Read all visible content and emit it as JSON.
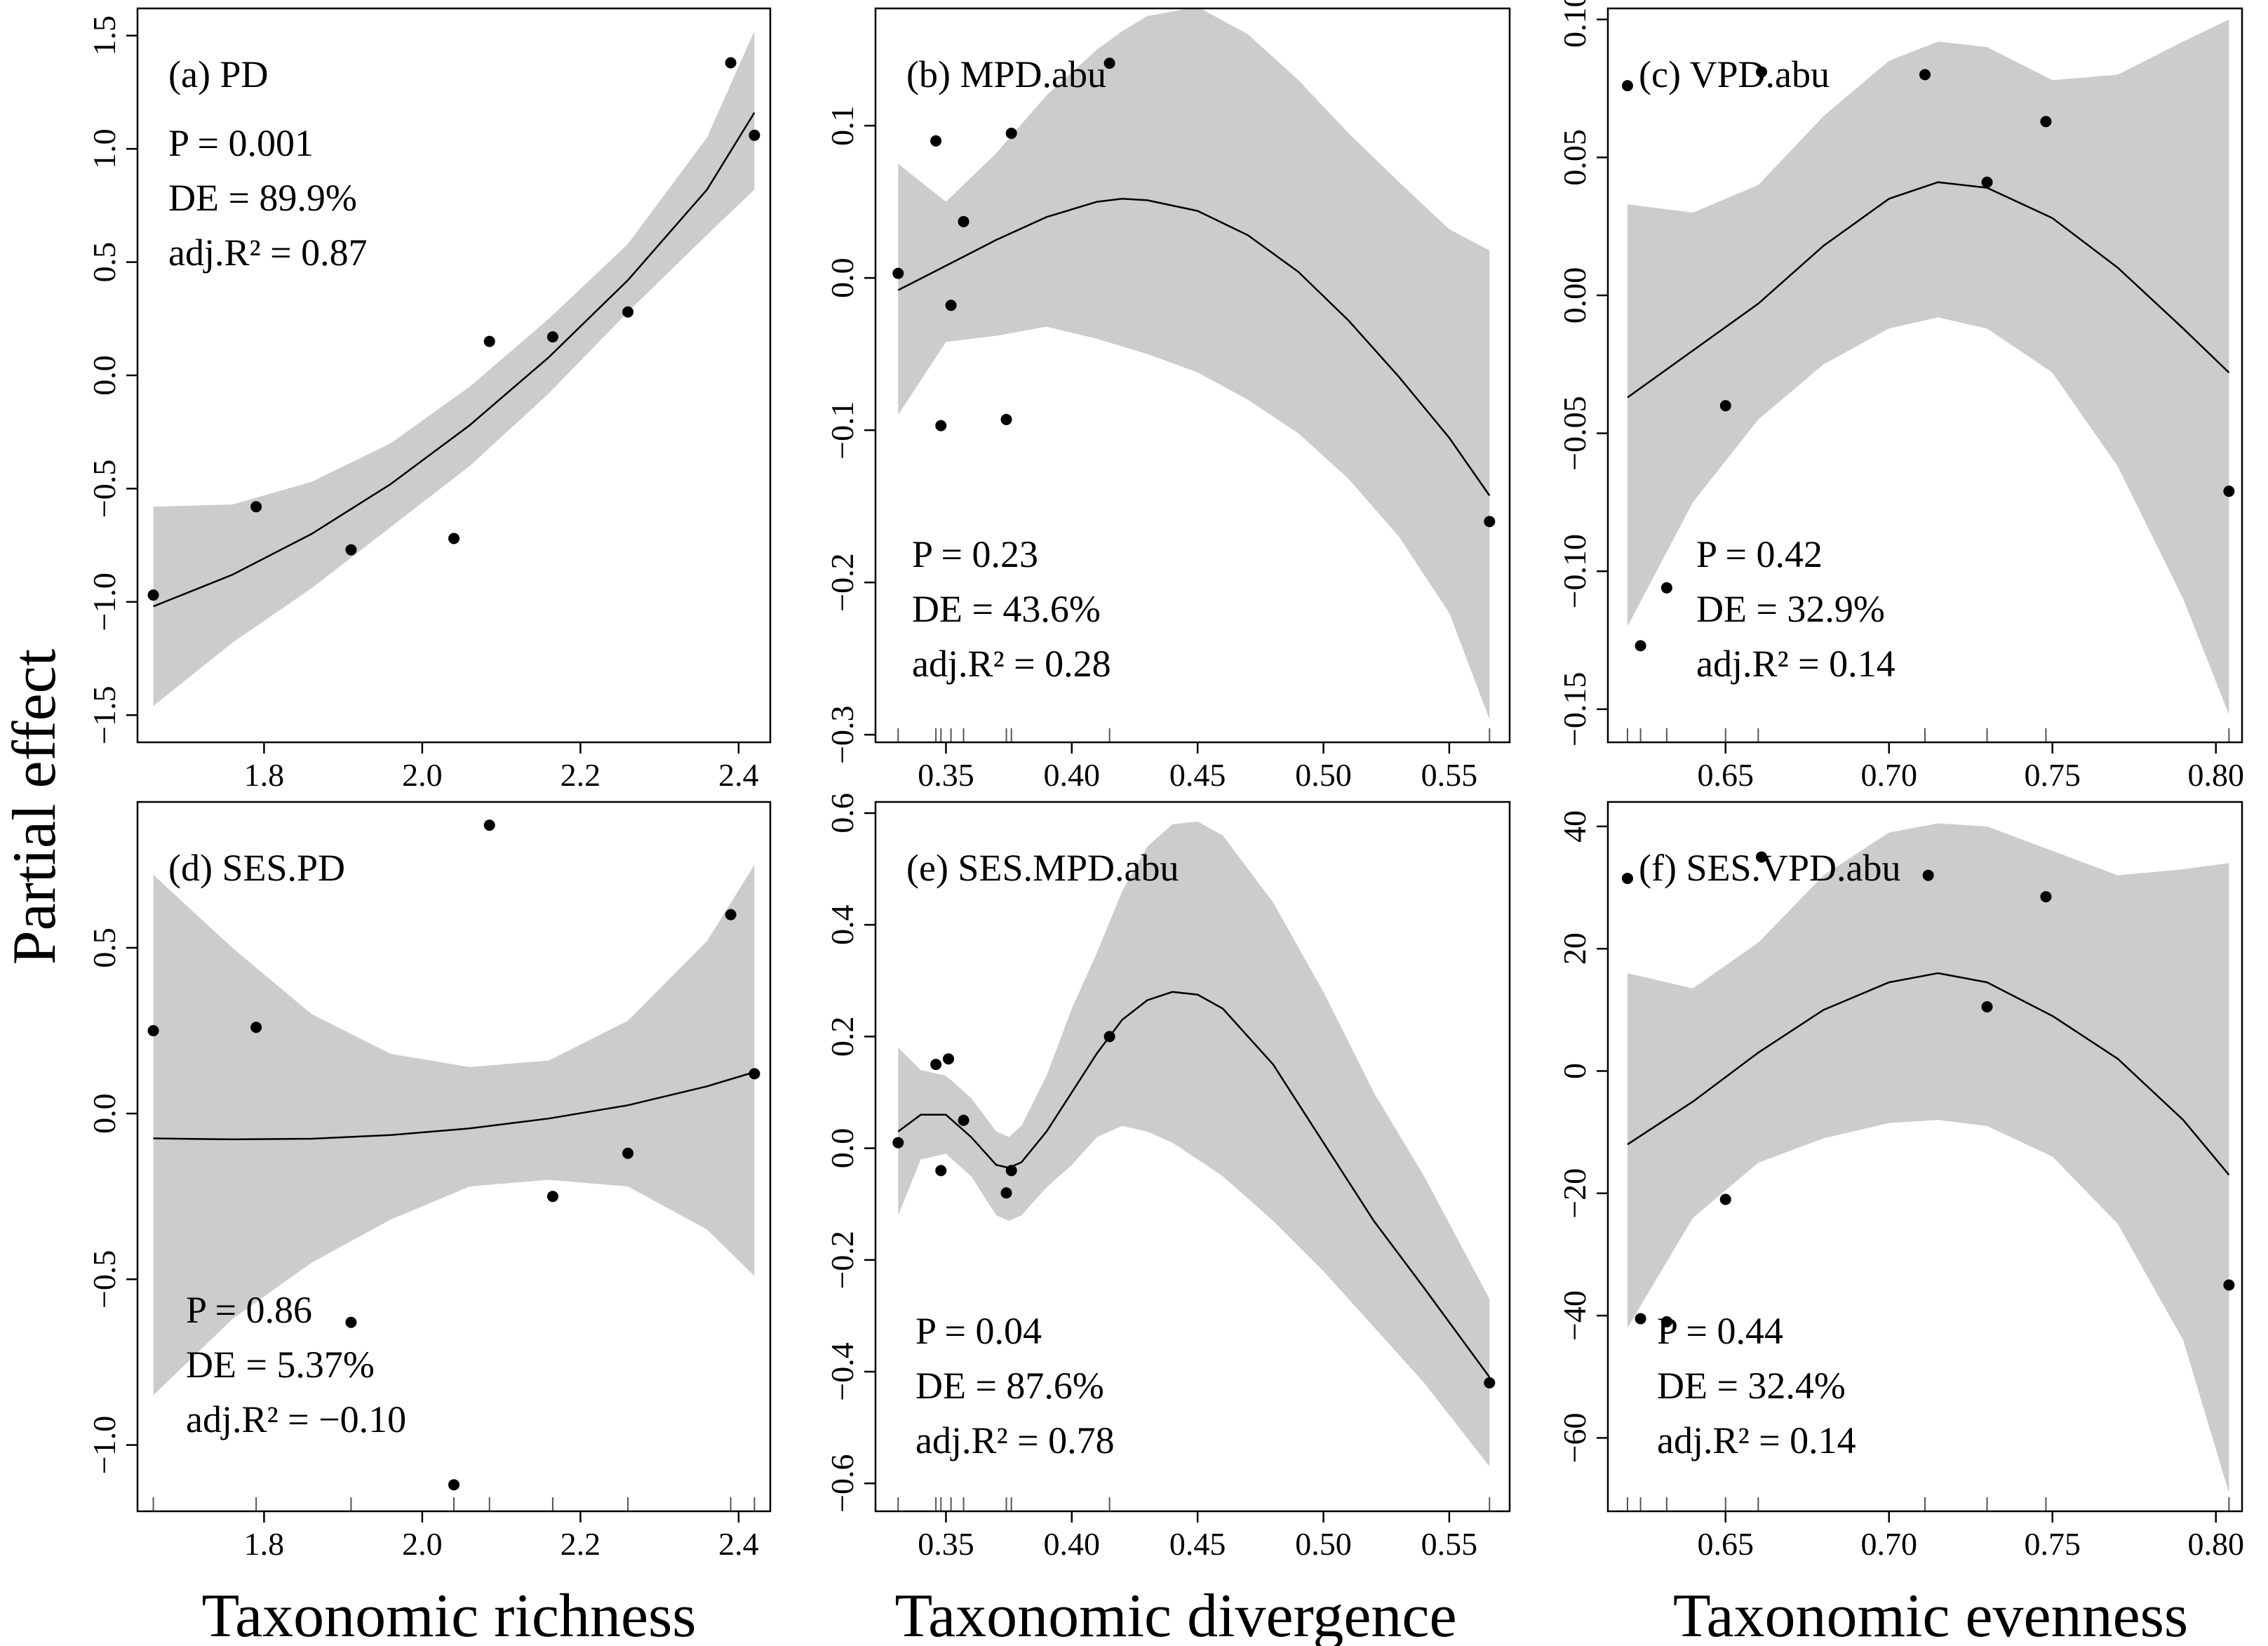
{
  "figure": {
    "ylabel": "Partial effect",
    "xlabels": [
      "Taxonomic richness",
      "Taxonomic divergence",
      "Taxonomic evenness"
    ]
  },
  "colors": {
    "band": "#cccccc",
    "line": "#000000",
    "point": "#000000",
    "frame": "#000000"
  },
  "chart_data": [
    {
      "type": "scatter",
      "panel": "(a) PD",
      "stats": {
        "p": "P = 0.001",
        "de": "DE = 89.9%",
        "r2": "adj.R² = 0.87"
      },
      "xlim": [
        1.64,
        2.44
      ],
      "ylim": [
        -1.62,
        1.62
      ],
      "xticks": [
        1.8,
        2.0,
        2.2,
        2.4
      ],
      "xtick_labels": [
        "1.8",
        "2.0",
        "2.2",
        "2.4"
      ],
      "yticks": [
        -1.5,
        -1.0,
        -0.5,
        0.0,
        0.5,
        1.0,
        1.5
      ],
      "ytick_labels": [
        "−1.5",
        "−1.0",
        "−0.5",
        "0.0",
        "0.5",
        "1.0",
        "1.5"
      ],
      "rug": [],
      "points": [
        [
          1.66,
          -0.97
        ],
        [
          1.79,
          -0.58
        ],
        [
          1.91,
          -0.77
        ],
        [
          2.04,
          -0.72
        ],
        [
          2.085,
          0.15
        ],
        [
          2.165,
          0.17
        ],
        [
          2.26,
          0.28
        ],
        [
          2.39,
          1.38
        ],
        [
          2.42,
          1.06
        ]
      ],
      "fit_x": [
        1.66,
        1.76,
        1.86,
        1.96,
        2.06,
        2.16,
        2.26,
        2.36,
        2.42
      ],
      "fit_y": [
        -1.02,
        -0.88,
        -0.7,
        -0.48,
        -0.22,
        0.08,
        0.42,
        0.82,
        1.16
      ],
      "lower": [
        -1.46,
        -1.18,
        -0.94,
        -0.67,
        -0.4,
        -0.08,
        0.28,
        0.62,
        0.82
      ],
      "upper": [
        -0.58,
        -0.57,
        -0.47,
        -0.3,
        -0.05,
        0.25,
        0.58,
        1.05,
        1.52
      ]
    },
    {
      "type": "scatter",
      "panel": "(b) MPD.abu",
      "stats": {
        "p": "P = 0.23",
        "de": "DE = 43.6%",
        "r2": "adj.R² = 0.28"
      },
      "xlim": [
        0.322,
        0.574
      ],
      "ylim": [
        -0.305,
        0.177
      ],
      "xticks": [
        0.35,
        0.4,
        0.45,
        0.5,
        0.55
      ],
      "xtick_labels": [
        "0.35",
        "0.40",
        "0.45",
        "0.50",
        "0.55"
      ],
      "yticks": [
        -0.3,
        -0.2,
        -0.1,
        0.0,
        0.1
      ],
      "ytick_labels": [
        "−0.3",
        "−0.2",
        "−0.1",
        "0.0",
        "0.1"
      ],
      "rug": [
        0.331,
        0.346,
        0.348,
        0.352,
        0.357,
        0.374,
        0.376,
        0.415,
        0.566
      ],
      "points": [
        [
          0.331,
          0.003
        ],
        [
          0.346,
          0.09
        ],
        [
          0.348,
          -0.097
        ],
        [
          0.352,
          -0.018
        ],
        [
          0.357,
          0.037
        ],
        [
          0.374,
          -0.093
        ],
        [
          0.376,
          0.095
        ],
        [
          0.415,
          0.141
        ],
        [
          0.566,
          -0.16
        ]
      ],
      "fit_x": [
        0.331,
        0.35,
        0.37,
        0.39,
        0.41,
        0.42,
        0.43,
        0.45,
        0.47,
        0.49,
        0.51,
        0.53,
        0.55,
        0.566
      ],
      "fit_y": [
        -0.008,
        0.008,
        0.025,
        0.04,
        0.05,
        0.052,
        0.051,
        0.044,
        0.028,
        0.004,
        -0.028,
        -0.065,
        -0.105,
        -0.143
      ],
      "lower": [
        -0.09,
        -0.042,
        -0.038,
        -0.032,
        -0.04,
        -0.045,
        -0.05,
        -0.062,
        -0.08,
        -0.102,
        -0.132,
        -0.17,
        -0.22,
        -0.29
      ],
      "upper": [
        0.075,
        0.05,
        0.082,
        0.12,
        0.15,
        0.162,
        0.172,
        0.178,
        0.16,
        0.13,
        0.095,
        0.063,
        0.032,
        0.018
      ]
    },
    {
      "type": "scatter",
      "panel": "(c) VPD.abu",
      "stats": {
        "p": "P = 0.42",
        "de": "DE = 32.9%",
        "r2": "adj.R² = 0.14"
      },
      "xlim": [
        0.614,
        0.808
      ],
      "ylim": [
        -0.162,
        0.104
      ],
      "xticks": [
        0.65,
        0.7,
        0.75,
        0.8
      ],
      "xtick_labels": [
        "0.65",
        "0.70",
        "0.75",
        "0.80"
      ],
      "yticks": [
        -0.15,
        -0.1,
        -0.05,
        0.0,
        0.05,
        0.1
      ],
      "ytick_labels": [
        "−0.15",
        "−0.10",
        "−0.05",
        "0.00",
        "0.05",
        "0.10"
      ],
      "rug": [
        0.62,
        0.624,
        0.632,
        0.65,
        0.66,
        0.711,
        0.73,
        0.748,
        0.804
      ],
      "points": [
        [
          0.62,
          0.076
        ],
        [
          0.624,
          -0.127
        ],
        [
          0.632,
          -0.106
        ],
        [
          0.65,
          -0.04
        ],
        [
          0.661,
          0.081
        ],
        [
          0.711,
          0.08
        ],
        [
          0.73,
          0.041
        ],
        [
          0.748,
          0.063
        ],
        [
          0.804,
          -0.071
        ]
      ],
      "fit_x": [
        0.62,
        0.64,
        0.66,
        0.68,
        0.7,
        0.715,
        0.73,
        0.75,
        0.77,
        0.79,
        0.804
      ],
      "fit_y": [
        -0.037,
        -0.02,
        -0.003,
        0.018,
        0.035,
        0.041,
        0.039,
        0.028,
        0.01,
        -0.012,
        -0.028
      ],
      "lower": [
        -0.12,
        -0.075,
        -0.045,
        -0.025,
        -0.012,
        -0.008,
        -0.012,
        -0.028,
        -0.062,
        -0.11,
        -0.152
      ],
      "upper": [
        0.033,
        0.03,
        0.04,
        0.065,
        0.085,
        0.092,
        0.09,
        0.078,
        0.08,
        0.092,
        0.1
      ]
    },
    {
      "type": "scatter",
      "panel": "(d) SES.PD",
      "stats": {
        "p": "P = 0.86",
        "de": "DE = 5.37%",
        "r2": "adj.R² = −0.10"
      },
      "xlim": [
        1.64,
        2.44
      ],
      "ylim": [
        -1.2,
        0.94
      ],
      "xticks": [
        1.8,
        2.0,
        2.2,
        2.4
      ],
      "xtick_labels": [
        "1.8",
        "2.0",
        "2.2",
        "2.4"
      ],
      "yticks": [
        -1.0,
        -0.5,
        0.0,
        0.5
      ],
      "ytick_labels": [
        "−1.0",
        "−0.5",
        "0.0",
        "0.5"
      ],
      "rug": [
        1.66,
        1.79,
        1.91,
        2.04,
        2.085,
        2.165,
        2.26,
        2.39,
        2.42
      ],
      "points": [
        [
          1.66,
          0.25
        ],
        [
          1.79,
          0.26
        ],
        [
          1.91,
          -0.63
        ],
        [
          2.04,
          -1.12
        ],
        [
          2.085,
          0.87
        ],
        [
          2.165,
          -0.25
        ],
        [
          2.26,
          -0.12
        ],
        [
          2.39,
          0.6
        ],
        [
          2.42,
          0.12
        ]
      ],
      "fit_x": [
        1.66,
        1.76,
        1.86,
        1.96,
        2.06,
        2.16,
        2.26,
        2.36,
        2.42
      ],
      "fit_y": [
        -0.075,
        -0.078,
        -0.076,
        -0.065,
        -0.045,
        -0.015,
        0.025,
        0.082,
        0.125
      ],
      "lower": [
        -0.85,
        -0.62,
        -0.45,
        -0.32,
        -0.22,
        -0.2,
        -0.22,
        -0.35,
        -0.49
      ],
      "upper": [
        0.72,
        0.5,
        0.3,
        0.18,
        0.14,
        0.16,
        0.28,
        0.52,
        0.75
      ]
    },
    {
      "type": "scatter",
      "panel": "(e) SES.MPD.abu",
      "stats": {
        "p": "P = 0.04",
        "de": "DE = 87.6%",
        "r2": "adj.R² = 0.78"
      },
      "xlim": [
        0.322,
        0.574
      ],
      "ylim": [
        -0.65,
        0.62
      ],
      "xticks": [
        0.35,
        0.4,
        0.45,
        0.5,
        0.55
      ],
      "xtick_labels": [
        "0.35",
        "0.40",
        "0.45",
        "0.50",
        "0.55"
      ],
      "yticks": [
        -0.6,
        -0.4,
        -0.2,
        0.0,
        0.2,
        0.4,
        0.6
      ],
      "ytick_labels": [
        "−0.6",
        "−0.4",
        "−0.2",
        "0.0",
        "0.2",
        "0.4",
        "0.6"
      ],
      "rug": [
        0.331,
        0.346,
        0.348,
        0.352,
        0.357,
        0.374,
        0.376,
        0.415,
        0.566
      ],
      "points": [
        [
          0.331,
          0.01
        ],
        [
          0.346,
          0.15
        ],
        [
          0.348,
          -0.04
        ],
        [
          0.351,
          0.16
        ],
        [
          0.357,
          0.05
        ],
        [
          0.374,
          -0.08
        ],
        [
          0.376,
          -0.04
        ],
        [
          0.415,
          0.2
        ],
        [
          0.566,
          -0.42
        ]
      ],
      "fit_x": [
        0.331,
        0.34,
        0.35,
        0.36,
        0.37,
        0.375,
        0.38,
        0.39,
        0.4,
        0.41,
        0.42,
        0.43,
        0.44,
        0.45,
        0.46,
        0.48,
        0.5,
        0.52,
        0.54,
        0.566
      ],
      "fit_y": [
        0.03,
        0.06,
        0.06,
        0.02,
        -0.03,
        -0.035,
        -0.025,
        0.03,
        0.1,
        0.17,
        0.23,
        0.265,
        0.28,
        0.275,
        0.25,
        0.15,
        0.01,
        -0.13,
        -0.25,
        -0.41
      ],
      "lower": [
        -0.12,
        -0.02,
        -0.01,
        -0.05,
        -0.12,
        -0.13,
        -0.12,
        -0.07,
        -0.03,
        0.02,
        0.04,
        0.03,
        0.01,
        -0.02,
        -0.05,
        -0.13,
        -0.22,
        -0.32,
        -0.42,
        -0.57
      ],
      "upper": [
        0.18,
        0.14,
        0.13,
        0.09,
        0.03,
        0.02,
        0.04,
        0.13,
        0.25,
        0.35,
        0.46,
        0.54,
        0.58,
        0.585,
        0.56,
        0.44,
        0.28,
        0.1,
        -0.05,
        -0.27
      ]
    },
    {
      "type": "scatter",
      "panel": "(f) SES.VPD.abu",
      "stats": {
        "p": "P = 0.44",
        "de": "DE = 32.4%",
        "r2": "adj.R² = 0.14"
      },
      "xlim": [
        0.614,
        0.808
      ],
      "ylim": [
        -72,
        44
      ],
      "xticks": [
        0.65,
        0.7,
        0.75,
        0.8
      ],
      "xtick_labels": [
        "0.65",
        "0.70",
        "0.75",
        "0.80"
      ],
      "yticks": [
        -60,
        -40,
        -20,
        0,
        20,
        40
      ],
      "ytick_labels": [
        "−60",
        "−40",
        "−20",
        "0",
        "20",
        "40"
      ],
      "rug": [
        0.62,
        0.624,
        0.632,
        0.65,
        0.66,
        0.711,
        0.73,
        0.748,
        0.804
      ],
      "points": [
        [
          0.62,
          31.5
        ],
        [
          0.624,
          -40.5
        ],
        [
          0.632,
          -41
        ],
        [
          0.65,
          -21
        ],
        [
          0.661,
          35
        ],
        [
          0.712,
          32
        ],
        [
          0.73,
          10.5
        ],
        [
          0.748,
          28.5
        ],
        [
          0.804,
          -35
        ]
      ],
      "fit_x": [
        0.62,
        0.64,
        0.66,
        0.68,
        0.7,
        0.715,
        0.73,
        0.75,
        0.77,
        0.79,
        0.804
      ],
      "fit_y": [
        -12,
        -5,
        3,
        10,
        14.5,
        16,
        14.5,
        9,
        2,
        -8,
        -17
      ],
      "lower": [
        -42,
        -24,
        -15,
        -11,
        -8.5,
        -8,
        -9,
        -14,
        -25,
        -44,
        -69
      ],
      "upper": [
        16,
        13.5,
        21,
        32,
        39,
        40.5,
        40,
        36,
        32,
        33,
        34
      ]
    }
  ]
}
